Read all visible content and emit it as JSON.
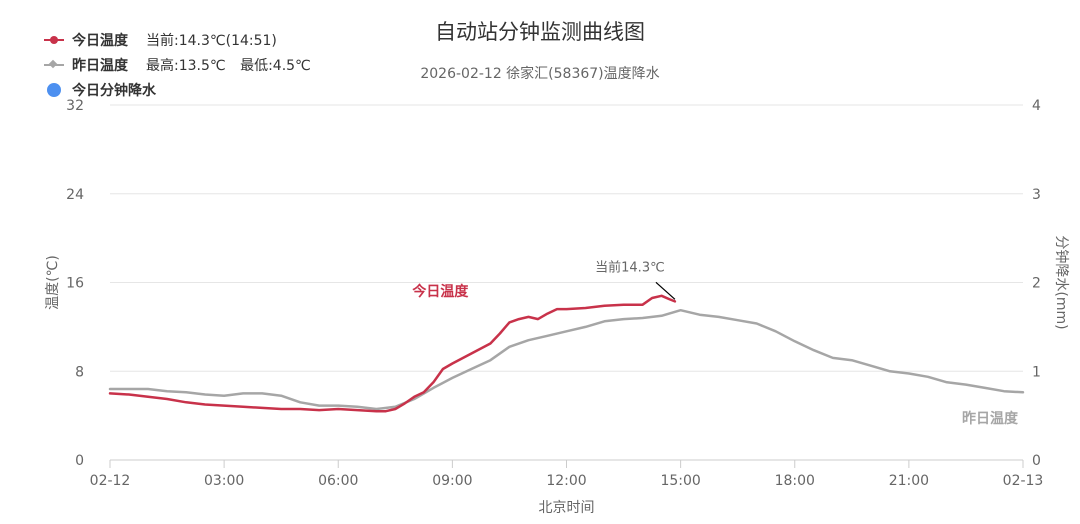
{
  "chart_data": {
    "type": "line",
    "title": "自动站分钟监测曲线图",
    "subtitle": "2026-02-12 徐家汇(58367)温度降水",
    "xlabel": "北京时间",
    "ylabel": "温度(℃)",
    "y2label": "分钟降水(mm)",
    "x_tick_labels": [
      "02-12",
      "03:00",
      "06:00",
      "09:00",
      "12:00",
      "15:00",
      "18:00",
      "21:00",
      "02-13"
    ],
    "x_range_hours": [
      0,
      24
    ],
    "ylim": [
      0,
      32
    ],
    "y_ticks": [
      0,
      8,
      16,
      24,
      32
    ],
    "y2lim": [
      0,
      4
    ],
    "y2_ticks": [
      0,
      1,
      2,
      3,
      4
    ],
    "grid": "horizontal",
    "legend": {
      "placement": "top-left",
      "items": [
        {
          "name": "今日温度",
          "info": [
            "当前:14.3℃(14:51)"
          ],
          "color": "#c8324a",
          "marker": "circle"
        },
        {
          "name": "昨日温度",
          "info": [
            "最高:13.5℃",
            "最低:4.5℃"
          ],
          "color": "#a6a6a6",
          "marker": "diamond"
        },
        {
          "name": "今日分钟降水",
          "info": [],
          "color": "#4d90f0",
          "marker": "dot"
        }
      ]
    },
    "series": [
      {
        "name": "今日温度",
        "color": "#c8324a",
        "x_hours": [
          0,
          0.5,
          1.0,
          1.5,
          2.0,
          2.5,
          3.0,
          3.5,
          4.0,
          4.5,
          5.0,
          5.5,
          6.0,
          6.5,
          7.0,
          7.25,
          7.5,
          7.75,
          8.0,
          8.25,
          8.5,
          8.75,
          9.0,
          9.5,
          10.0,
          10.25,
          10.5,
          10.75,
          11.0,
          11.25,
          11.5,
          11.75,
          12.0,
          12.5,
          13.0,
          13.5,
          14.0,
          14.25,
          14.5,
          14.7,
          14.85
        ],
        "values": [
          6.0,
          5.9,
          5.7,
          5.5,
          5.2,
          5.0,
          4.9,
          4.8,
          4.7,
          4.6,
          4.6,
          4.5,
          4.6,
          4.5,
          4.4,
          4.4,
          4.6,
          5.1,
          5.7,
          6.1,
          7.0,
          8.2,
          8.7,
          9.6,
          10.5,
          11.4,
          12.4,
          12.7,
          12.9,
          12.7,
          13.2,
          13.6,
          13.6,
          13.7,
          13.9,
          14.0,
          14.0,
          14.6,
          14.8,
          14.5,
          14.3
        ]
      },
      {
        "name": "昨日温度",
        "color": "#a6a6a6",
        "x_hours": [
          0,
          0.5,
          1.0,
          1.5,
          2.0,
          2.5,
          3.0,
          3.5,
          4.0,
          4.5,
          5.0,
          5.5,
          6.0,
          6.5,
          7.0,
          7.5,
          8.0,
          8.5,
          9.0,
          9.5,
          10.0,
          10.5,
          11.0,
          11.5,
          12.0,
          12.5,
          13.0,
          13.5,
          14.0,
          14.5,
          15.0,
          15.5,
          16.0,
          16.5,
          17.0,
          17.5,
          18.0,
          18.5,
          19.0,
          19.5,
          20.0,
          20.5,
          21.0,
          21.5,
          22.0,
          22.5,
          23.0,
          23.5,
          24.0
        ],
        "values": [
          6.4,
          6.4,
          6.4,
          6.2,
          6.1,
          5.9,
          5.8,
          6.0,
          6.0,
          5.8,
          5.2,
          4.9,
          4.9,
          4.8,
          4.6,
          4.8,
          5.5,
          6.5,
          7.4,
          8.2,
          9.0,
          10.2,
          10.8,
          11.2,
          11.6,
          12.0,
          12.5,
          12.7,
          12.8,
          13.0,
          13.5,
          13.1,
          12.9,
          12.6,
          12.3,
          11.6,
          10.7,
          9.9,
          9.2,
          9.0,
          8.5,
          8.0,
          7.8,
          7.5,
          7.0,
          6.8,
          6.5,
          6.2,
          6.1
        ]
      }
    ],
    "annotations": [
      {
        "text": "当前14.3℃",
        "x_hours": 14.85,
        "y": 14.3,
        "color": "#666666"
      },
      {
        "text": "今日温度",
        "series": "今日温度",
        "color": "#c8324a"
      },
      {
        "text": "昨日温度",
        "series": "昨日温度",
        "color": "#a6a6a6"
      }
    ]
  }
}
